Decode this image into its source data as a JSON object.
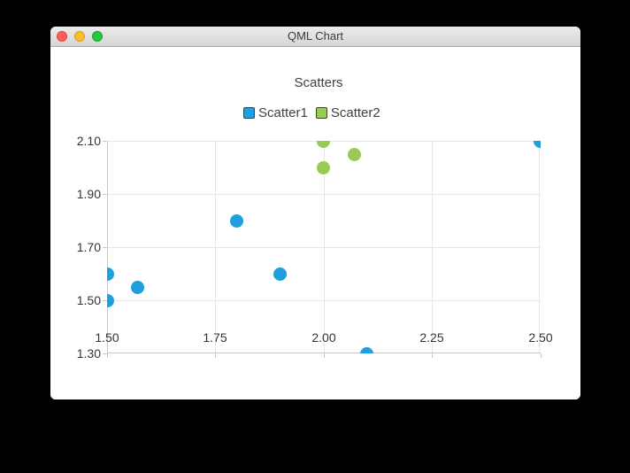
{
  "window": {
    "title": "QML Chart"
  },
  "chart_data": {
    "type": "scatter",
    "title": "Scatters",
    "xlabel": "",
    "ylabel": "",
    "xlim": [
      1.5,
      2.5
    ],
    "ylim": [
      1.3,
      2.1
    ],
    "x_tick_values": [
      1.5,
      1.75,
      2.0,
      2.25,
      2.5
    ],
    "x_ticks": [
      "1.50",
      "1.75",
      "2.00",
      "2.25",
      "2.50"
    ],
    "y_tick_values": [
      2.1,
      1.9,
      1.7,
      1.5,
      1.3
    ],
    "y_ticks": [
      "2.10",
      "1.90",
      "1.70",
      "1.50",
      "1.30"
    ],
    "grid": true,
    "legend_position": "top",
    "marker_size": 15,
    "series": [
      {
        "name": "Scatter1",
        "color": "#209fdf",
        "points": [
          [
            1.5,
            1.5
          ],
          [
            1.5,
            1.6
          ],
          [
            1.57,
            1.55
          ],
          [
            1.8,
            1.8
          ],
          [
            1.9,
            1.6
          ],
          [
            2.1,
            1.3
          ],
          [
            2.5,
            2.1
          ]
        ]
      },
      {
        "name": "Scatter2",
        "color": "#99ca53",
        "points": [
          [
            2.0,
            2.0
          ],
          [
            2.0,
            2.1
          ],
          [
            2.07,
            2.05
          ]
        ]
      }
    ]
  },
  "colors": {
    "grid": "#e7e7e7",
    "axis": "#c7c7c7",
    "tick_label": "#333338",
    "text": "#404044"
  }
}
